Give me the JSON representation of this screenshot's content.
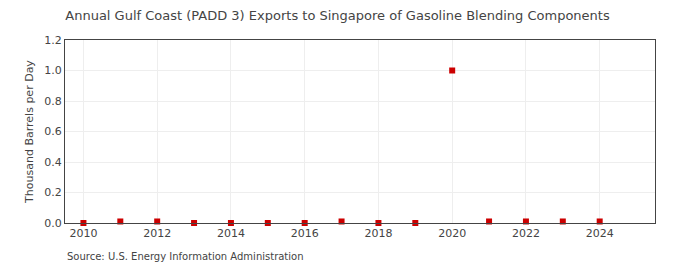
{
  "chart_data": {
    "type": "scatter",
    "title": "Annual Gulf Coast (PADD 3) Exports to Singapore of Gasoline Blending Components",
    "y_label": "Thousand Barrels per Day",
    "annotations": [
      "Source: U.S. Energy Information Administration"
    ],
    "x": [
      2010,
      2011,
      2012,
      2013,
      2014,
      2015,
      2016,
      2017,
      2018,
      2019,
      2020,
      2021,
      2022,
      2023,
      2024
    ],
    "values": [
      0.0,
      0.01,
      0.01,
      0.0,
      0.0,
      0.0,
      0.0,
      0.01,
      0.0,
      0.0,
      1.0,
      0.01,
      0.01,
      0.01,
      0.01
    ],
    "color": "#cc0000",
    "marker": "square",
    "xlim": [
      2009.5,
      2025.5
    ],
    "xticks": [
      2010,
      2012,
      2014,
      2016,
      2018,
      2020,
      2022,
      2024
    ],
    "ylim": [
      0.0,
      1.2
    ],
    "yticks": [
      {
        "value": 0.0,
        "label": "0.0"
      },
      0.2,
      0.4,
      0.6,
      0.8,
      {
        "value": 1.0,
        "label": "1.0"
      },
      1.2
    ],
    "grid": true
  }
}
